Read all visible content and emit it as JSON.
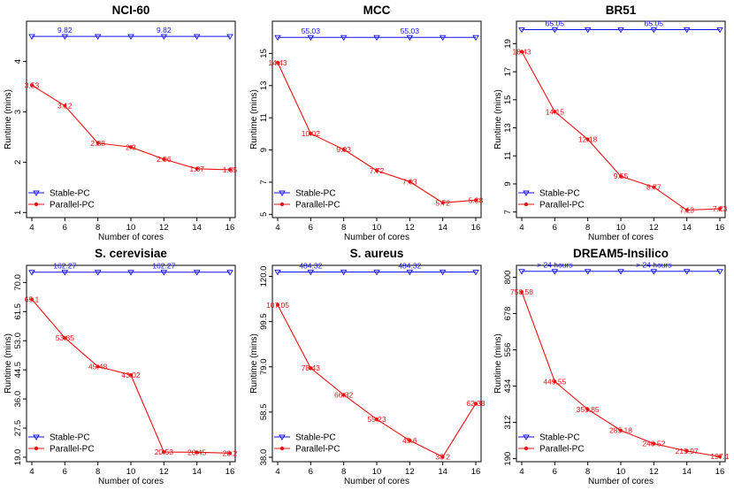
{
  "chart_data": [
    {
      "type": "line",
      "title": "NCI-60",
      "xlabel": "Number of cores",
      "ylabel": "Runtime (mins)",
      "x": [
        4,
        6,
        8,
        10,
        12,
        14,
        16
      ],
      "xlim": [
        4,
        16
      ],
      "ylim": [
        0.9,
        4.8
      ],
      "yticks": [
        "1",
        "2",
        "3",
        "4"
      ],
      "yticks_values": [
        1,
        2,
        3,
        4
      ],
      "stable_level": 4.5,
      "stable_label": "9.82",
      "series": [
        {
          "name": "Stable-PC",
          "color": "#1111ee",
          "marker": "triangle-down"
        },
        {
          "name": "Parallel-PC",
          "color": "#ee1111",
          "marker": "circle",
          "values": [
            3.53,
            3.12,
            2.38,
            2.3,
            2.06,
            1.87,
            1.85
          ],
          "labels": [
            "3.53",
            "3.12",
            "2.38",
            "2.3",
            "2.06",
            "1.87",
            "1.85"
          ]
        }
      ],
      "legend": "bottom-left"
    },
    {
      "type": "line",
      "title": "MCC",
      "xlabel": "Number of cores",
      "ylabel": "Runtime (mins)",
      "x": [
        4,
        6,
        8,
        10,
        12,
        14,
        16
      ],
      "xlim": [
        4,
        16
      ],
      "ylim": [
        4.8,
        17.0
      ],
      "yticks": [
        "5",
        "7",
        "9",
        "11",
        "13",
        "15"
      ],
      "yticks_values": [
        5,
        7,
        9,
        11,
        13,
        15
      ],
      "stable_level": 16.0,
      "stable_label": "55.03",
      "series": [
        {
          "name": "Stable-PC",
          "color": "#1111ee",
          "marker": "triangle-down"
        },
        {
          "name": "Parallel-PC",
          "color": "#ee1111",
          "marker": "circle",
          "values": [
            14.43,
            10.02,
            9.03,
            7.72,
            7.03,
            5.72,
            5.88
          ],
          "labels": [
            "14.43",
            "10.02",
            "9.03",
            "7.72",
            "7.03",
            "5.72",
            "5.88"
          ]
        }
      ],
      "legend": "bottom-left"
    },
    {
      "type": "line",
      "title": "BR51",
      "xlabel": "Number of cores",
      "ylabel": "Runtime (mins)",
      "x": [
        4,
        6,
        8,
        10,
        12,
        14,
        16
      ],
      "xlim": [
        4,
        16
      ],
      "ylim": [
        6.6,
        20.6
      ],
      "yticks": [
        "7",
        "9",
        "11",
        "13",
        "15",
        "17",
        "19"
      ],
      "yticks_values": [
        7,
        9,
        11,
        13,
        15,
        17,
        19
      ],
      "stable_level": 20.0,
      "stable_label": "65.05",
      "series": [
        {
          "name": "Stable-PC",
          "color": "#1111ee",
          "marker": "triangle-down"
        },
        {
          "name": "Parallel-PC",
          "color": "#ee1111",
          "marker": "circle",
          "values": [
            18.43,
            14.15,
            12.18,
            9.55,
            8.77,
            7.13,
            7.23
          ],
          "labels": [
            "18.43",
            "14.15",
            "12.18",
            "9.55",
            "8.77",
            "7.13",
            "7.23"
          ]
        }
      ],
      "legend": "bottom-left"
    },
    {
      "type": "line",
      "title": "S. cerevisiae",
      "xlabel": "Number of cores",
      "ylabel": "Runtime (mins)",
      "x": [
        4,
        6,
        8,
        10,
        12,
        14,
        16
      ],
      "xlim": [
        4,
        16
      ],
      "ylim": [
        17.7,
        75.0
      ],
      "yticks": [
        "19.0",
        "27.5",
        "36.0",
        "44.5",
        "53.0",
        "61.5",
        "70.0"
      ],
      "yticks_values": [
        19.0,
        27.5,
        36.0,
        44.5,
        53.0,
        61.5,
        70.0
      ],
      "stable_level": 73.0,
      "stable_label": "162.27",
      "series": [
        {
          "name": "Stable-PC",
          "color": "#1111ee",
          "marker": "triangle-down"
        },
        {
          "name": "Parallel-PC",
          "color": "#ee1111",
          "marker": "circle",
          "values": [
            65.1,
            53.85,
            45.48,
            43.02,
            20.53,
            20.45,
            20.2
          ],
          "labels": [
            "65.1",
            "53.85",
            "45.48",
            "43.02",
            "20.53",
            "20.45",
            "20.2"
          ]
        }
      ],
      "legend": "bottom-left"
    },
    {
      "type": "line",
      "title": "S. aureus",
      "xlabel": "Number of cores",
      "ylabel": "Runtime (mins)",
      "x": [
        4,
        6,
        8,
        10,
        12,
        14,
        16
      ],
      "xlim": [
        4,
        16
      ],
      "ylim": [
        36.0,
        125.0
      ],
      "yticks": [
        "38.0",
        "58.5",
        "79.0",
        "99.5",
        "120.0"
      ],
      "yticks_values": [
        38.0,
        58.5,
        79.0,
        99.5,
        120.0
      ],
      "stable_level": 122.0,
      "stable_label": "484.32",
      "series": [
        {
          "name": "Stable-PC",
          "color": "#1111ee",
          "marker": "triangle-down"
        },
        {
          "name": "Parallel-PC",
          "color": "#ee1111",
          "marker": "circle",
          "values": [
            107.05,
            78.43,
            66.32,
            55.23,
            45.6,
            38.2,
            62.38
          ],
          "labels": [
            "107.05",
            "78.43",
            "66.32",
            "55.23",
            "45.6",
            "38.2",
            "62.38"
          ]
        }
      ],
      "legend": "bottom-left"
    },
    {
      "type": "line",
      "title": "DREAM5-Insilico",
      "xlabel": "Number of cores",
      "ylabel": "Runtime (mins)",
      "x": [
        4,
        6,
        8,
        10,
        12,
        14,
        16
      ],
      "xlim": [
        4,
        16
      ],
      "ylim": [
        180,
        840
      ],
      "yticks": [
        "190",
        "312",
        "434",
        "556",
        "678",
        "800"
      ],
      "yticks_values": [
        190,
        312,
        434,
        556,
        678,
        800
      ],
      "stable_level": 820,
      "stable_label": "> 24 hours",
      "series": [
        {
          "name": "Stable-PC",
          "color": "#1111ee",
          "marker": "triangle-down"
        },
        {
          "name": "Parallel-PC",
          "color": "#ee1111",
          "marker": "circle",
          "values": [
            750.58,
            449.55,
            355.85,
            285.18,
            240.52,
            215.97,
            197.1
          ],
          "labels": [
            "750.58",
            "449.55",
            "355.85",
            "285.18",
            "240.52",
            "215.97",
            "197.1"
          ]
        }
      ],
      "legend": "bottom-left"
    }
  ]
}
